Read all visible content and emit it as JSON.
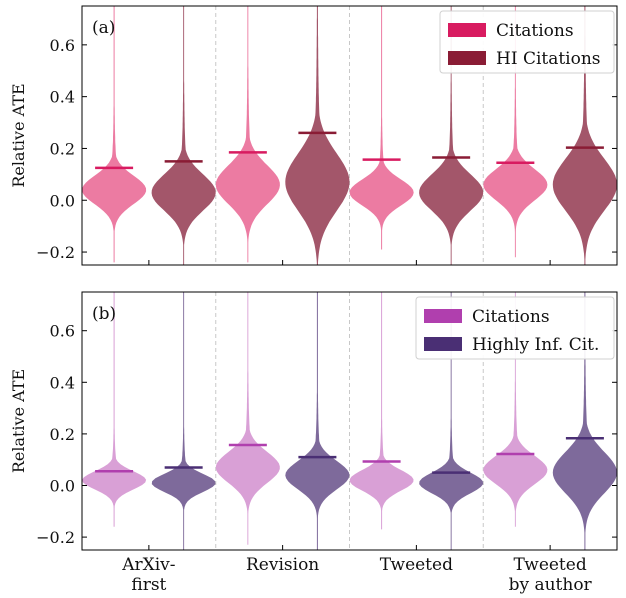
{
  "chart_data": [
    {
      "type": "violin",
      "panel_label": "(a)",
      "ylabel": "Relative ATE",
      "ylim": [
        -0.25,
        0.75
      ],
      "yticks": [
        "−0.2",
        "0.0",
        "0.2",
        "0.4",
        "0.6"
      ],
      "ytick_values": [
        -0.2,
        0.0,
        0.2,
        0.4,
        0.6
      ],
      "categories": [
        "ArXiv-first",
        "Revision",
        "Tweeted",
        "Tweeted by author"
      ],
      "legend_position": "top-right",
      "series": [
        {
          "name": "Citations",
          "fill": "#ec7ba2",
          "line": "#d81b60",
          "means": [
            0.125,
            0.185,
            0.157,
            0.145
          ],
          "min": [
            -0.24,
            -0.24,
            -0.19,
            -0.22
          ],
          "max": [
            0.75,
            0.75,
            0.75,
            0.75
          ],
          "mode": [
            0.04,
            0.06,
            0.03,
            0.06
          ],
          "spread": [
            0.055,
            0.075,
            0.05,
            0.06
          ]
        },
        {
          "name": "HI Citations",
          "fill": "#a3566a",
          "line": "#8a1c35",
          "means": [
            0.15,
            0.26,
            0.165,
            0.203
          ],
          "min": [
            -0.25,
            -0.25,
            -0.25,
            -0.25
          ],
          "max": [
            0.75,
            0.75,
            0.75,
            0.75
          ],
          "mode": [
            0.03,
            0.07,
            0.03,
            0.06
          ],
          "spread": [
            0.07,
            0.11,
            0.07,
            0.1
          ]
        }
      ]
    },
    {
      "type": "violin",
      "panel_label": "(b)",
      "ylabel": "Relative ATE",
      "ylim": [
        -0.25,
        0.75
      ],
      "yticks": [
        "−0.2",
        "0.0",
        "0.2",
        "0.4",
        "0.6"
      ],
      "ytick_values": [
        -0.2,
        0.0,
        0.2,
        0.4,
        0.6
      ],
      "categories": [
        "ArXiv-first",
        "Revision",
        "Tweeted",
        "Tweeted by author"
      ],
      "xtick_lines": [
        [
          "ArXiv-",
          "first"
        ],
        [
          "Revision"
        ],
        [
          "Tweeted"
        ],
        [
          "Tweeted",
          "by author"
        ]
      ],
      "legend_position": "top-right",
      "series": [
        {
          "name": "Citations",
          "fill": "#d9a0d6",
          "line": "#b03fae",
          "means": [
            0.055,
            0.157,
            0.093,
            0.122
          ],
          "min": [
            -0.16,
            -0.23,
            -0.17,
            -0.16
          ],
          "max": [
            0.75,
            0.75,
            0.75,
            0.75
          ],
          "mode": [
            0.02,
            0.07,
            0.02,
            0.06
          ],
          "spread": [
            0.035,
            0.06,
            0.04,
            0.055
          ]
        },
        {
          "name": "Highly Inf. Cit.",
          "fill": "#7e6a9b",
          "line": "#4a2f74",
          "means": [
            0.07,
            0.11,
            0.05,
            0.183
          ],
          "min": [
            -0.25,
            -0.25,
            -0.25,
            -0.25
          ],
          "max": [
            0.75,
            0.75,
            0.75,
            0.75
          ],
          "mode": [
            0.01,
            0.04,
            0.01,
            0.05
          ],
          "spread": [
            0.035,
            0.055,
            0.04,
            0.08
          ]
        }
      ]
    }
  ]
}
